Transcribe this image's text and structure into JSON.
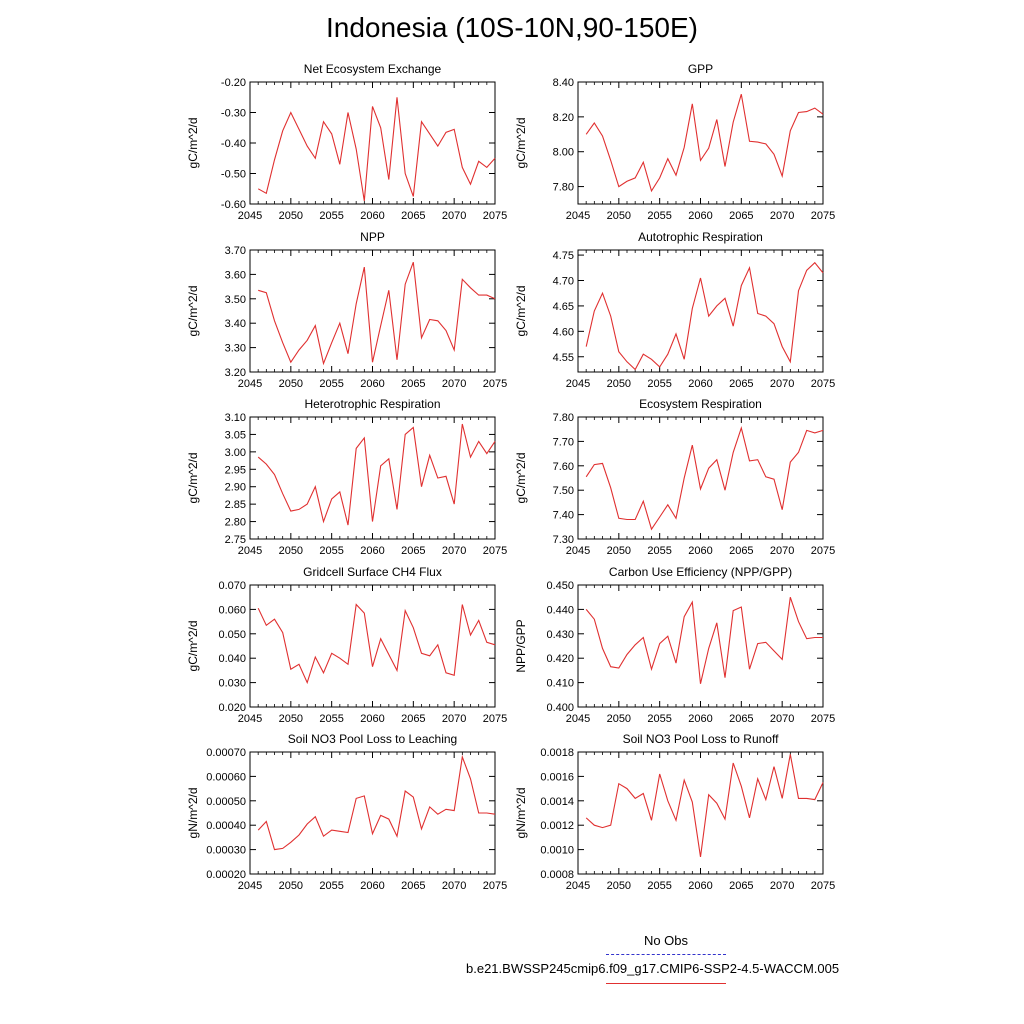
{
  "title": "Indonesia (10S-10N,90-150E)",
  "legend": {
    "obs_label": "No Obs",
    "model_label": "b.e21.BWSSP245cmip6.f09_g17.CMIP6-SSP2-4.5-WACCM.005",
    "obs_color": "#3333cc",
    "model_color": "#e03030"
  },
  "chart_data": [
    {
      "type": "line",
      "title": "Net Ecosystem Exchange",
      "ylabel": "gC/m^2/d",
      "xlim": [
        2045,
        2075
      ],
      "ylim": [
        -0.6,
        -0.2
      ],
      "xticks": [
        2045,
        2050,
        2055,
        2060,
        2065,
        2070,
        2075
      ],
      "yticks": [
        -0.6,
        -0.5,
        -0.4,
        -0.3,
        -0.2
      ],
      "ytick_labels": [
        "-0.60",
        "-0.50",
        "-0.40",
        "-0.30",
        "-0.20"
      ],
      "x": [
        2046,
        2047,
        2048,
        2049,
        2050,
        2051,
        2052,
        2053,
        2054,
        2055,
        2056,
        2057,
        2058,
        2059,
        2060,
        2061,
        2062,
        2063,
        2064,
        2065,
        2066,
        2067,
        2068,
        2069,
        2070,
        2071,
        2072,
        2073,
        2074,
        2075
      ],
      "series": [
        {
          "name": "b.e21.BWSSP245cmip6.f09_g17.CMIP6-SSP2-4.5-WACCM.005",
          "values": [
            -0.55,
            -0.565,
            -0.455,
            -0.36,
            -0.3,
            -0.355,
            -0.41,
            -0.45,
            -0.33,
            -0.37,
            -0.47,
            -0.3,
            -0.42,
            -0.59,
            -0.28,
            -0.35,
            -0.52,
            -0.25,
            -0.5,
            -0.575,
            -0.33,
            -0.37,
            -0.41,
            -0.365,
            -0.355,
            -0.48,
            -0.535,
            -0.46,
            -0.48,
            -0.45
          ]
        }
      ]
    },
    {
      "type": "line",
      "title": "GPP",
      "ylabel": "gC/m^2/d",
      "xlim": [
        2045,
        2075
      ],
      "ylim": [
        7.7,
        8.4
      ],
      "xticks": [
        2045,
        2050,
        2055,
        2060,
        2065,
        2070,
        2075
      ],
      "yticks": [
        7.8,
        8.0,
        8.2,
        8.4
      ],
      "ytick_labels": [
        "7.80",
        "8.00",
        "8.20",
        "8.40"
      ],
      "x": [
        2046,
        2047,
        2048,
        2049,
        2050,
        2051,
        2052,
        2053,
        2054,
        2055,
        2056,
        2057,
        2058,
        2059,
        2060,
        2061,
        2062,
        2063,
        2064,
        2065,
        2066,
        2067,
        2068,
        2069,
        2070,
        2071,
        2072,
        2073,
        2074,
        2075
      ],
      "series": [
        {
          "name": "b.e21.BWSSP245cmip6.f09_g17.CMIP6-SSP2-4.5-WACCM.005",
          "values": [
            8.1,
            8.165,
            8.09,
            7.95,
            7.8,
            7.83,
            7.85,
            7.94,
            7.775,
            7.85,
            7.96,
            7.865,
            8.025,
            8.275,
            7.95,
            8.02,
            8.185,
            7.915,
            8.17,
            8.33,
            8.06,
            8.055,
            8.045,
            7.985,
            7.86,
            8.12,
            8.225,
            8.23,
            8.25,
            8.215
          ]
        }
      ]
    },
    {
      "type": "line",
      "title": "NPP",
      "ylabel": "gC/m^2/d",
      "xlim": [
        2045,
        2075
      ],
      "ylim": [
        3.2,
        3.7
      ],
      "xticks": [
        2045,
        2050,
        2055,
        2060,
        2065,
        2070,
        2075
      ],
      "yticks": [
        3.2,
        3.3,
        3.4,
        3.5,
        3.6,
        3.7
      ],
      "ytick_labels": [
        "3.20",
        "3.30",
        "3.40",
        "3.50",
        "3.60",
        "3.70"
      ],
      "x": [
        2046,
        2047,
        2048,
        2049,
        2050,
        2051,
        2052,
        2053,
        2054,
        2055,
        2056,
        2057,
        2058,
        2059,
        2060,
        2061,
        2062,
        2063,
        2064,
        2065,
        2066,
        2067,
        2068,
        2069,
        2070,
        2071,
        2072,
        2073,
        2074,
        2075
      ],
      "series": [
        {
          "name": "b.e21.BWSSP245cmip6.f09_g17.CMIP6-SSP2-4.5-WACCM.005",
          "values": [
            3.535,
            3.525,
            3.41,
            3.32,
            3.24,
            3.29,
            3.33,
            3.39,
            3.235,
            3.32,
            3.4,
            3.275,
            3.48,
            3.63,
            3.24,
            3.39,
            3.535,
            3.25,
            3.56,
            3.65,
            3.34,
            3.415,
            3.41,
            3.37,
            3.29,
            3.58,
            3.545,
            3.515,
            3.515,
            3.5
          ]
        }
      ]
    },
    {
      "type": "line",
      "title": "Autotrophic Respiration",
      "ylabel": "gC/m^2/d",
      "xlim": [
        2045,
        2075
      ],
      "ylim": [
        4.52,
        4.76
      ],
      "xticks": [
        2045,
        2050,
        2055,
        2060,
        2065,
        2070,
        2075
      ],
      "yticks": [
        4.55,
        4.6,
        4.65,
        4.7,
        4.75
      ],
      "ytick_labels": [
        "4.55",
        "4.60",
        "4.65",
        "4.70",
        "4.75"
      ],
      "x": [
        2046,
        2047,
        2048,
        2049,
        2050,
        2051,
        2052,
        2053,
        2054,
        2055,
        2056,
        2057,
        2058,
        2059,
        2060,
        2061,
        2062,
        2063,
        2064,
        2065,
        2066,
        2067,
        2068,
        2069,
        2070,
        2071,
        2072,
        2073,
        2074,
        2075
      ],
      "series": [
        {
          "name": "b.e21.BWSSP245cmip6.f09_g17.CMIP6-SSP2-4.5-WACCM.005",
          "values": [
            4.57,
            4.64,
            4.675,
            4.63,
            4.56,
            4.54,
            4.525,
            4.555,
            4.545,
            4.53,
            4.555,
            4.595,
            4.545,
            4.645,
            4.705,
            4.63,
            4.65,
            4.665,
            4.61,
            4.69,
            4.725,
            4.635,
            4.63,
            4.615,
            4.57,
            4.54,
            4.68,
            4.72,
            4.735,
            4.715
          ]
        }
      ]
    },
    {
      "type": "line",
      "title": "Heterotrophic Respiration",
      "ylabel": "gC/m^2/d",
      "xlim": [
        2045,
        2075
      ],
      "ylim": [
        2.75,
        3.1
      ],
      "xticks": [
        2045,
        2050,
        2055,
        2060,
        2065,
        2070,
        2075
      ],
      "yticks": [
        2.75,
        2.8,
        2.85,
        2.9,
        2.95,
        3.0,
        3.05,
        3.1
      ],
      "ytick_labels": [
        "2.75",
        "2.80",
        "2.85",
        "2.90",
        "2.95",
        "3.00",
        "3.05",
        "3.10"
      ],
      "x": [
        2046,
        2047,
        2048,
        2049,
        2050,
        2051,
        2052,
        2053,
        2054,
        2055,
        2056,
        2057,
        2058,
        2059,
        2060,
        2061,
        2062,
        2063,
        2064,
        2065,
        2066,
        2067,
        2068,
        2069,
        2070,
        2071,
        2072,
        2073,
        2074,
        2075
      ],
      "series": [
        {
          "name": "b.e21.BWSSP245cmip6.f09_g17.CMIP6-SSP2-4.5-WACCM.005",
          "values": [
            2.985,
            2.965,
            2.935,
            2.88,
            2.83,
            2.835,
            2.85,
            2.9,
            2.8,
            2.865,
            2.885,
            2.79,
            3.01,
            3.04,
            2.8,
            2.96,
            2.98,
            2.835,
            3.05,
            3.07,
            2.9,
            2.99,
            2.925,
            2.93,
            2.85,
            3.08,
            2.985,
            3.03,
            2.995,
            3.03
          ]
        }
      ]
    },
    {
      "type": "line",
      "title": "Ecosystem Respiration",
      "ylabel": "gC/m^2/d",
      "xlim": [
        2045,
        2075
      ],
      "ylim": [
        7.3,
        7.8
      ],
      "xticks": [
        2045,
        2050,
        2055,
        2060,
        2065,
        2070,
        2075
      ],
      "yticks": [
        7.3,
        7.4,
        7.5,
        7.6,
        7.7,
        7.8
      ],
      "ytick_labels": [
        "7.30",
        "7.40",
        "7.50",
        "7.60",
        "7.70",
        "7.80"
      ],
      "x": [
        2046,
        2047,
        2048,
        2049,
        2050,
        2051,
        2052,
        2053,
        2054,
        2055,
        2056,
        2057,
        2058,
        2059,
        2060,
        2061,
        2062,
        2063,
        2064,
        2065,
        2066,
        2067,
        2068,
        2069,
        2070,
        2071,
        2072,
        2073,
        2074,
        2075
      ],
      "series": [
        {
          "name": "b.e21.BWSSP245cmip6.f09_g17.CMIP6-SSP2-4.5-WACCM.005",
          "values": [
            7.555,
            7.605,
            7.61,
            7.51,
            7.385,
            7.38,
            7.38,
            7.455,
            7.34,
            7.39,
            7.44,
            7.385,
            7.55,
            7.685,
            7.505,
            7.59,
            7.625,
            7.5,
            7.655,
            7.755,
            7.62,
            7.625,
            7.555,
            7.545,
            7.42,
            7.615,
            7.655,
            7.745,
            7.735,
            7.745
          ]
        }
      ]
    },
    {
      "type": "line",
      "title": "Gridcell Surface CH4 Flux",
      "ylabel": "gC/m^2/d",
      "xlim": [
        2045,
        2075
      ],
      "ylim": [
        0.02,
        0.07
      ],
      "xticks": [
        2045,
        2050,
        2055,
        2060,
        2065,
        2070,
        2075
      ],
      "yticks": [
        0.02,
        0.03,
        0.04,
        0.05,
        0.06,
        0.07
      ],
      "ytick_labels": [
        "0.020",
        "0.030",
        "0.040",
        "0.050",
        "0.060",
        "0.070"
      ],
      "x": [
        2046,
        2047,
        2048,
        2049,
        2050,
        2051,
        2052,
        2053,
        2054,
        2055,
        2056,
        2057,
        2058,
        2059,
        2060,
        2061,
        2062,
        2063,
        2064,
        2065,
        2066,
        2067,
        2068,
        2069,
        2070,
        2071,
        2072,
        2073,
        2074,
        2075
      ],
      "series": [
        {
          "name": "b.e21.BWSSP245cmip6.f09_g17.CMIP6-SSP2-4.5-WACCM.005",
          "values": [
            0.0605,
            0.0535,
            0.056,
            0.0505,
            0.0355,
            0.0375,
            0.03,
            0.0405,
            0.034,
            0.042,
            0.04,
            0.0375,
            0.062,
            0.0585,
            0.0365,
            0.048,
            0.0415,
            0.035,
            0.0595,
            0.0525,
            0.042,
            0.041,
            0.0455,
            0.034,
            0.033,
            0.062,
            0.0495,
            0.0555,
            0.0465,
            0.0455
          ]
        }
      ]
    },
    {
      "type": "line",
      "title": "Carbon Use Efficiency (NPP/GPP)",
      "ylabel": "NPP/GPP",
      "xlim": [
        2045,
        2075
      ],
      "ylim": [
        0.4,
        0.45
      ],
      "xticks": [
        2045,
        2050,
        2055,
        2060,
        2065,
        2070,
        2075
      ],
      "yticks": [
        0.4,
        0.41,
        0.42,
        0.43,
        0.44,
        0.45
      ],
      "ytick_labels": [
        "0.400",
        "0.410",
        "0.420",
        "0.430",
        "0.440",
        "0.450"
      ],
      "x": [
        2046,
        2047,
        2048,
        2049,
        2050,
        2051,
        2052,
        2053,
        2054,
        2055,
        2056,
        2057,
        2058,
        2059,
        2060,
        2061,
        2062,
        2063,
        2064,
        2065,
        2066,
        2067,
        2068,
        2069,
        2070,
        2071,
        2072,
        2073,
        2074,
        2075
      ],
      "series": [
        {
          "name": "b.e21.BWSSP245cmip6.f09_g17.CMIP6-SSP2-4.5-WACCM.005",
          "values": [
            0.44,
            0.436,
            0.424,
            0.4165,
            0.416,
            0.4215,
            0.4255,
            0.4285,
            0.4155,
            0.426,
            0.429,
            0.418,
            0.437,
            0.443,
            0.4095,
            0.424,
            0.4345,
            0.412,
            0.4395,
            0.441,
            0.4155,
            0.426,
            0.4265,
            0.423,
            0.4195,
            0.445,
            0.435,
            0.428,
            0.4285,
            0.4285
          ]
        }
      ]
    },
    {
      "type": "line",
      "title": "Soil NO3 Pool Loss to Leaching",
      "ylabel": "gN/m^2/d",
      "xlim": [
        2045,
        2075
      ],
      "ylim": [
        0.0002,
        0.0007
      ],
      "xticks": [
        2045,
        2050,
        2055,
        2060,
        2065,
        2070,
        2075
      ],
      "yticks": [
        0.0002,
        0.0003,
        0.0004,
        0.0005,
        0.0006,
        0.0007
      ],
      "ytick_labels": [
        "0.00020",
        "0.00030",
        "0.00040",
        "0.00050",
        "0.00060",
        "0.00070"
      ],
      "x": [
        2046,
        2047,
        2048,
        2049,
        2050,
        2051,
        2052,
        2053,
        2054,
        2055,
        2056,
        2057,
        2058,
        2059,
        2060,
        2061,
        2062,
        2063,
        2064,
        2065,
        2066,
        2067,
        2068,
        2069,
        2070,
        2071,
        2072,
        2073,
        2074,
        2075
      ],
      "series": [
        {
          "name": "b.e21.BWSSP245cmip6.f09_g17.CMIP6-SSP2-4.5-WACCM.005",
          "values": [
            0.00038,
            0.000415,
            0.0003,
            0.000305,
            0.00033,
            0.00036,
            0.000405,
            0.000435,
            0.000355,
            0.00038,
            0.000375,
            0.00037,
            0.00051,
            0.00052,
            0.000365,
            0.00044,
            0.000425,
            0.000355,
            0.00054,
            0.000515,
            0.000385,
            0.000475,
            0.000445,
            0.000465,
            0.00046,
            0.00068,
            0.00059,
            0.00045,
            0.00045,
            0.000445
          ]
        }
      ]
    },
    {
      "type": "line",
      "title": "Soil NO3 Pool Loss to Runoff",
      "ylabel": "gN/m^2/d",
      "xlim": [
        2045,
        2075
      ],
      "ylim": [
        0.0008,
        0.0018
      ],
      "xticks": [
        2045,
        2050,
        2055,
        2060,
        2065,
        2070,
        2075
      ],
      "yticks": [
        0.0008,
        0.001,
        0.0012,
        0.0014,
        0.0016,
        0.0018
      ],
      "ytick_labels": [
        "0.0008",
        "0.0010",
        "0.0012",
        "0.0014",
        "0.0016",
        "0.0018"
      ],
      "x": [
        2046,
        2047,
        2048,
        2049,
        2050,
        2051,
        2052,
        2053,
        2054,
        2055,
        2056,
        2057,
        2058,
        2059,
        2060,
        2061,
        2062,
        2063,
        2064,
        2065,
        2066,
        2067,
        2068,
        2069,
        2070,
        2071,
        2072,
        2073,
        2074,
        2075
      ],
      "series": [
        {
          "name": "b.e21.BWSSP245cmip6.f09_g17.CMIP6-SSP2-4.5-WACCM.005",
          "values": [
            0.00126,
            0.0012,
            0.00118,
            0.0012,
            0.00154,
            0.0015,
            0.00142,
            0.00146,
            0.00124,
            0.00162,
            0.0014,
            0.00124,
            0.00157,
            0.00139,
            0.00094,
            0.00145,
            0.00138,
            0.00125,
            0.00171,
            0.00152,
            0.00126,
            0.00158,
            0.00141,
            0.00168,
            0.00142,
            0.00178,
            0.00142,
            0.00142,
            0.00141,
            0.00155
          ]
        }
      ]
    }
  ]
}
